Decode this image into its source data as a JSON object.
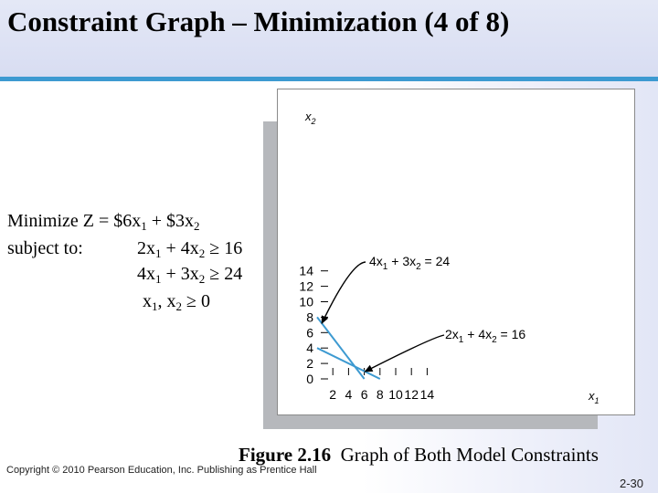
{
  "slide": {
    "title": "Constraint Graph – Minimization (4 of 8)",
    "caption_bold": "Figure 2.16",
    "caption_text": "Graph of Both Model Constraints",
    "copyright": "Copyright © 2010 Pearson Education, Inc. Publishing as Prentice Hall",
    "page_number": "2-30"
  },
  "model": {
    "objective": {
      "label": "Minimize Z = ",
      "c1": "$6",
      "v1": "x",
      "s1": "1",
      "op": " + ",
      "c2": "$3",
      "v2": "x",
      "s2": "2"
    },
    "subject_to": "subject to:",
    "constraints": [
      {
        "t1": "2x",
        "s1": "1",
        "mid": " + 4x",
        "s2": "2",
        "rel": " ≥ 16"
      },
      {
        "t1": "4x",
        "s1": "1",
        "mid": " + 3x",
        "s2": "2",
        "rel": " ≥ 24"
      },
      {
        "t1": "x",
        "s1": "1",
        "mid": ", x",
        "s2": "2",
        "rel": " ≥ 0"
      }
    ]
  },
  "chart_data": {
    "type": "line",
    "xlabel": "x1",
    "ylabel": "x2",
    "xlim": [
      0,
      16
    ],
    "ylim": [
      0,
      16
    ],
    "x_ticks": [
      2,
      4,
      6,
      8,
      10,
      12,
      14
    ],
    "y_ticks": [
      0,
      2,
      4,
      6,
      8,
      10,
      12,
      14
    ],
    "line_color": "#3d9ad1",
    "series": [
      {
        "name": "4x1 + 3x2 = 24",
        "x": [
          0,
          6
        ],
        "y": [
          8,
          0
        ]
      },
      {
        "name": "2x1 + 4x2 = 16",
        "x": [
          0,
          8
        ],
        "y": [
          4,
          0
        ]
      }
    ],
    "annotations": [
      {
        "text": "4x1 + 3x2 = 24",
        "parts": {
          "a": "4x",
          "s1": "1",
          "b": " + 3x",
          "s2": "2",
          "c": " = 24"
        },
        "points_to": [
          0.6,
          7.2
        ]
      },
      {
        "text": "2x1 + 4x2 = 16",
        "parts": {
          "a": "2x",
          "s1": "1",
          "b": " + 4x",
          "s2": "2",
          "c": " = 16"
        },
        "points_to": [
          6.1,
          0.95
        ]
      }
    ]
  }
}
